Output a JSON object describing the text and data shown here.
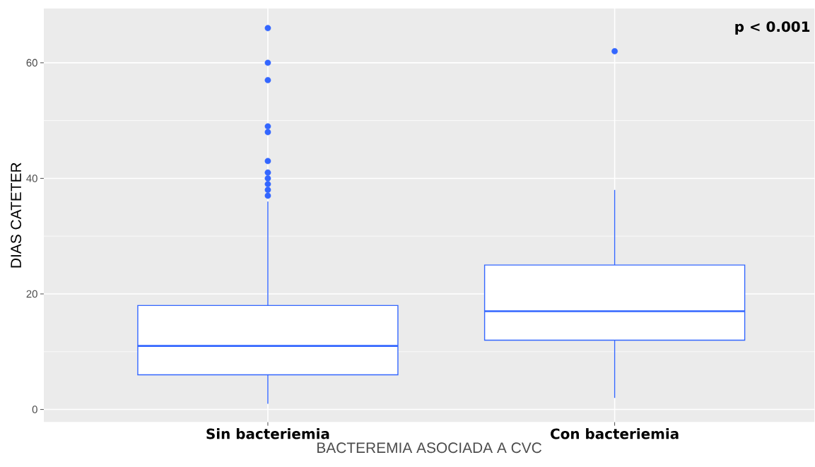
{
  "chart_data": {
    "type": "box",
    "categories": [
      "Sin bacteriemia",
      "Con bacteriemia"
    ],
    "boxes": [
      {
        "low": 1,
        "q1": 6,
        "median": 11,
        "q3": 18,
        "high": 36,
        "outliers": [
          66,
          60,
          57,
          49,
          48,
          43,
          41,
          40,
          39,
          38,
          37
        ]
      },
      {
        "low": 2,
        "q1": 12,
        "median": 17,
        "q3": 25,
        "high": 38,
        "outliers": [
          62
        ]
      }
    ],
    "color": "#3366ff",
    "xlabel": "BACTEREMIA ASOCIADA A CVC",
    "ylabel": "DIAS CATETER",
    "ylim": [
      -2.2,
      69.4
    ],
    "yticks": [
      0,
      20,
      40,
      60
    ],
    "grid": true,
    "annotations": [
      "p < 0.001"
    ]
  }
}
